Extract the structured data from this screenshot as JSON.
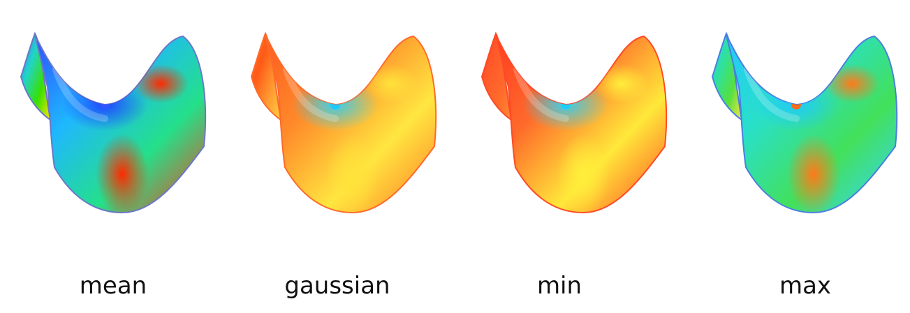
{
  "panels": [
    {
      "key": "mean",
      "label": "mean",
      "colors": {
        "back_wing": [
          "#3b66ff",
          "#21d4c8",
          "#38e000",
          "#ffe600"
        ],
        "front": [
          "#2d4dff",
          "#1fb7ff",
          "#24e08a",
          "#ff3b1a"
        ],
        "hot": "#ff2a00",
        "cool": "#1f3bff",
        "saddle": "#2f57ff",
        "edge": "#6a78c8"
      }
    },
    {
      "key": "gaussian",
      "label": "gaussian",
      "colors": {
        "back_wing": [
          "#ff7a20",
          "#ff5a18",
          "#ff9a30",
          "#ffd040"
        ],
        "front": [
          "#ff5a20",
          "#ff8a2a",
          "#ffe640",
          "#ff7a26"
        ],
        "hot": "#ffe23a",
        "cool": "#24d7ff",
        "saddle": "#1ec8ff",
        "edge": "#ff6a2a"
      }
    },
    {
      "key": "min",
      "label": "min",
      "colors": {
        "back_wing": [
          "#ff3a22",
          "#ff5a2a",
          "#ff6a2a",
          "#ff8a35"
        ],
        "front": [
          "#ff3b24",
          "#ff6a2a",
          "#ffe83a",
          "#ff4a24"
        ],
        "hot": "#ffee3a",
        "cool": "#25d8ff",
        "saddle": "#1bd0ff",
        "edge": "#ff4a25"
      }
    },
    {
      "key": "max",
      "label": "max",
      "colors": {
        "back_wing": [
          "#2fd0ff",
          "#2ee0a0",
          "#56e040",
          "#ffe640"
        ],
        "front": [
          "#22c8ff",
          "#29e0c8",
          "#43e05a",
          "#34d6ff"
        ],
        "hot": "#ff7a1a",
        "cool": "#20c8ff",
        "saddle": "#ff6b18",
        "edge": "#4a7fe0"
      }
    }
  ]
}
